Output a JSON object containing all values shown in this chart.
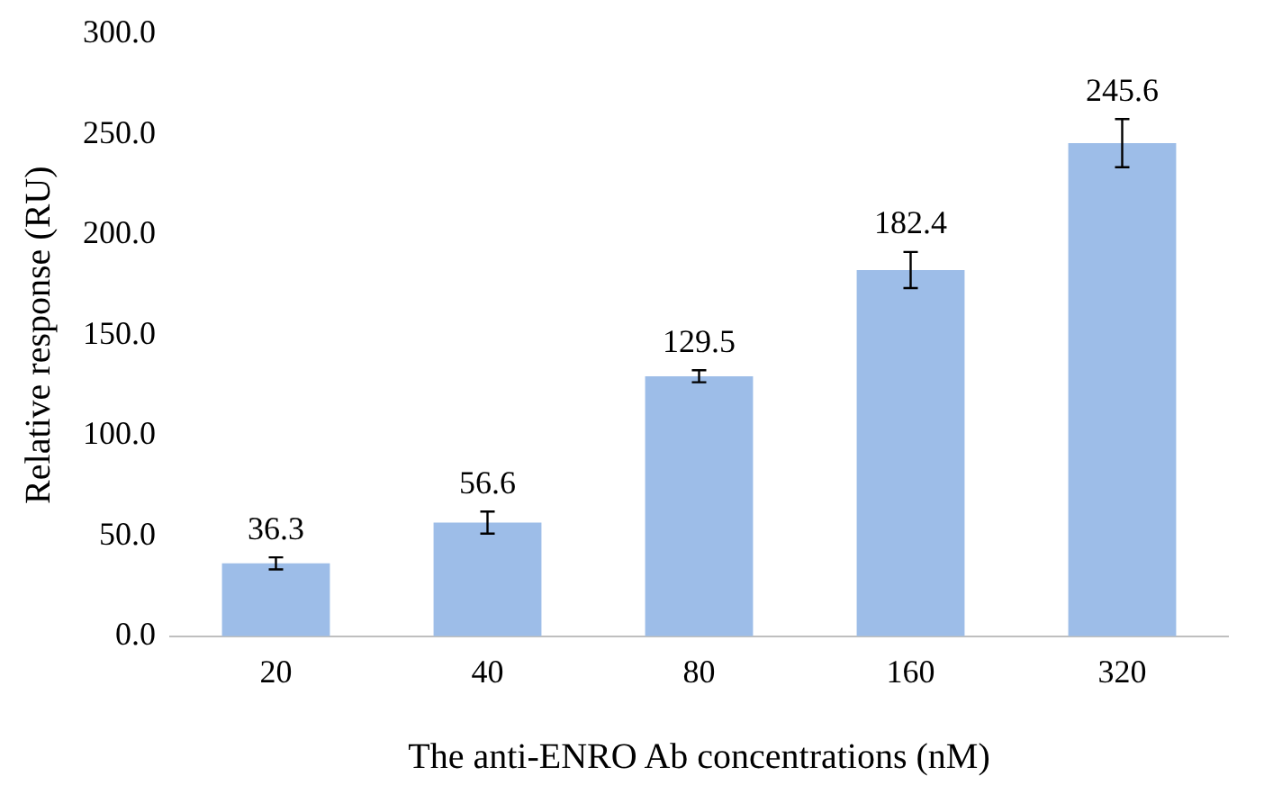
{
  "chart_data": {
    "type": "bar",
    "xlabel": "The anti-ENRO Ab concentrations (nM)",
    "ylabel": "Relative response (RU)",
    "categories": [
      "20",
      "40",
      "80",
      "160",
      "320"
    ],
    "values": [
      36.3,
      56.6,
      129.5,
      182.4,
      245.6
    ],
    "errors": [
      3,
      5.5,
      3,
      9,
      12
    ],
    "color": "#9dbde8",
    "ylim": [
      0,
      300
    ],
    "yticks": [
      {
        "value": 0,
        "label": "0.0"
      },
      {
        "value": 50,
        "label": "50.0"
      },
      {
        "value": 100,
        "label": "100.0"
      },
      {
        "value": 150,
        "label": "150.0"
      },
      {
        "value": 200,
        "label": "200.0"
      },
      {
        "value": 250,
        "label": "250.0"
      },
      {
        "value": 300,
        "label": "300.0"
      }
    ],
    "grid": false,
    "legend": false,
    "data_labels": true
  }
}
